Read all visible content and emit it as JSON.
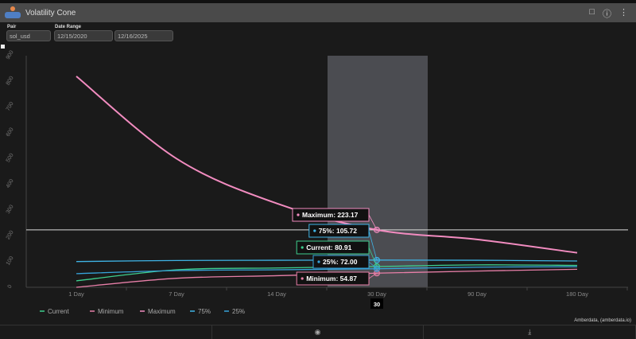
{
  "window": {
    "title": "Volatility Cone"
  },
  "filters": {
    "pair_label": "Pair",
    "pair_value": "sol_usd",
    "date_range_label": "Date Range",
    "start_date": "12/15/2020",
    "end_date": "12/16/2025"
  },
  "footer": {
    "credit": "Amberdata, (amberdata.io)",
    "camera_icon": "camera-icon",
    "download_icon": "download-icon"
  },
  "colors": {
    "Current": "#3ecf8e",
    "Minimum": "#e87fa8",
    "Maximum": "#f28cc0",
    "75%": "#3fb4e6",
    "25%": "#36a3d9"
  },
  "chart_data": {
    "type": "line",
    "categories": [
      "1 Day",
      "7 Day",
      "14 Day",
      "30 Day",
      "90 Day",
      "180 Day"
    ],
    "ylim": [
      0,
      900
    ],
    "yticks": [
      0,
      100,
      200,
      300,
      400,
      500,
      600,
      700,
      800,
      900
    ],
    "grid": true,
    "legend": "bottom-left",
    "series": [
      {
        "name": "Current",
        "values": [
          25,
          68,
          75,
          80.91,
          87,
          85
        ]
      },
      {
        "name": "Minimum",
        "values": [
          0,
          35,
          45,
          54.87,
          63,
          70
        ]
      },
      {
        "name": "Maximum",
        "values": [
          820,
          500,
          326,
          223.17,
          186,
          134
        ]
      },
      {
        "name": "75%",
        "values": [
          100,
          104,
          105,
          105.72,
          105,
          102
        ]
      },
      {
        "name": "25%",
        "values": [
          53,
          65,
          68,
          72.0,
          78,
          80
        ]
      }
    ],
    "hover": {
      "category": "30 Day",
      "label": "30",
      "reference_value": 223.17,
      "tooltips": [
        {
          "text": "Maximum: 223.17",
          "series": "Maximum"
        },
        {
          "text": "75%: 105.72",
          "series": "75%"
        },
        {
          "text": "Current: 80.91",
          "series": "Current"
        },
        {
          "text": "25%: 72.00",
          "series": "25%"
        },
        {
          "text": "Minimum: 54.87",
          "series": "Minimum"
        }
      ]
    }
  }
}
